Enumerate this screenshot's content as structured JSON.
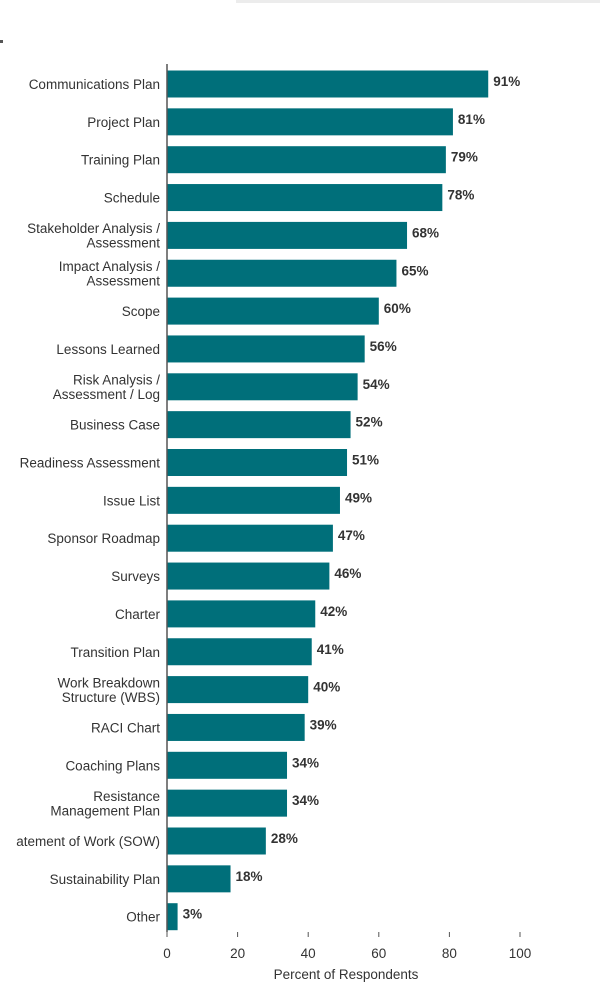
{
  "chart_data": {
    "type": "bar",
    "orientation": "horizontal",
    "bar_color": "#006f7a",
    "categories": [
      [
        "Communications Plan"
      ],
      [
        "Project Plan"
      ],
      [
        "Training Plan"
      ],
      [
        "Schedule"
      ],
      [
        "Stakeholder Analysis /",
        "Assessment"
      ],
      [
        "Impact Analysis /",
        "Assessment"
      ],
      [
        "Scope"
      ],
      [
        "Lessons Learned"
      ],
      [
        "Risk Analysis /",
        "Assessment / Log"
      ],
      [
        "Business Case"
      ],
      [
        "Readiness Assessment"
      ],
      [
        "Issue List"
      ],
      [
        "Sponsor Roadmap"
      ],
      [
        "Surveys"
      ],
      [
        "Charter"
      ],
      [
        "Transition Plan"
      ],
      [
        "Work Breakdown",
        "Structure (WBS)"
      ],
      [
        "RACI Chart"
      ],
      [
        "Coaching Plans"
      ],
      [
        "Resistance",
        "Management Plan"
      ],
      [
        "atement of Work (SOW)"
      ],
      [
        "Sustainability Plan"
      ],
      [
        "Other"
      ]
    ],
    "values": [
      91,
      81,
      79,
      78,
      68,
      65,
      60,
      56,
      54,
      52,
      51,
      49,
      47,
      46,
      42,
      41,
      40,
      39,
      34,
      34,
      28,
      18,
      3
    ],
    "value_labels": [
      "91%",
      "81%",
      "79%",
      "78%",
      "68%",
      "65%",
      "60%",
      "56%",
      "54%",
      "52%",
      "51%",
      "49%",
      "47%",
      "46%",
      "42%",
      "41%",
      "40%",
      "39%",
      "34%",
      "34%",
      "28%",
      "18%",
      "3%"
    ],
    "xlabel": "Percent of Respondents",
    "ylabel": "",
    "xlim": [
      0,
      100
    ],
    "xticks": [
      0,
      20,
      40,
      60,
      80,
      100
    ],
    "xtick_labels": [
      "0",
      "20",
      "40",
      "60",
      "80",
      "100"
    ],
    "grid": false,
    "legend": "none"
  }
}
